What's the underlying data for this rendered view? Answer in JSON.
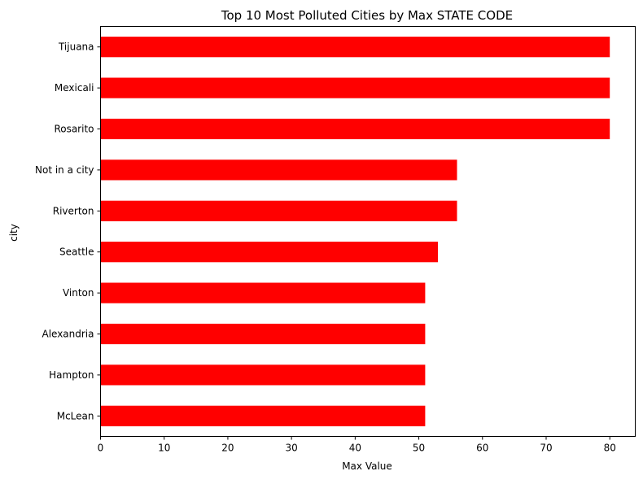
{
  "chart_data": {
    "type": "bar",
    "orientation": "horizontal",
    "title": "Top 10 Most Polluted Cities by Max STATE CODE",
    "xlabel": "Max Value",
    "ylabel": "city",
    "categories": [
      "Tijuana",
      "Mexicali",
      "Rosarito",
      "Not in a city",
      "Riverton",
      "Seattle",
      "Vinton",
      "Alexandria",
      "Hampton",
      "McLean"
    ],
    "values": [
      80,
      80,
      80,
      56,
      56,
      53,
      51,
      51,
      51,
      51
    ],
    "xlim": [
      0,
      84
    ],
    "xticks": [
      0,
      10,
      20,
      30,
      40,
      50,
      60,
      70,
      80
    ],
    "bar_color": "#ff0000",
    "grid": false,
    "legend": "none"
  }
}
